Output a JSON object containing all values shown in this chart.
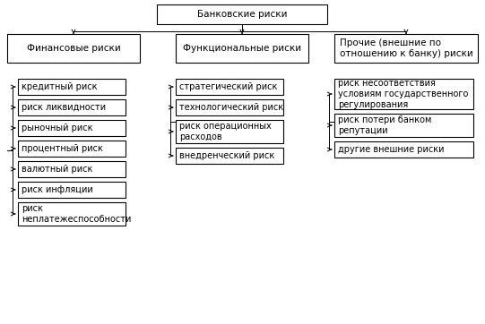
{
  "title": "Банковские риски",
  "col1_header": "Финансовые риски",
  "col2_header": "Функциональные риски",
  "col3_header": "Прочие (внешние по\nотношению к банку) риски",
  "col1_items": [
    "кредитный риск",
    "риск ликвидности",
    "рыночный риск",
    "процентный риск",
    "валютный риск",
    "риск инфляции",
    "риск\nнеплатежеспособности"
  ],
  "col2_items": [
    "стратегический риск",
    "технологический риск",
    "риск операционных\nрасходов",
    "внедренческий риск"
  ],
  "col3_items": [
    "риск несоответствия\nусловиям государственного\nрегулирования",
    "риск потери банком\nрепутации",
    "другие внешние риски"
  ],
  "bg_color": "#ffffff",
  "box_color": "#ffffff",
  "border_color": "#000000",
  "text_color": "#000000",
  "fontsize": 7.0,
  "header_fontsize": 7.5
}
